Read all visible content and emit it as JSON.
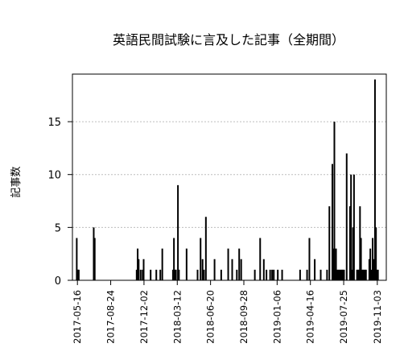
{
  "chart_data": {
    "type": "bar",
    "title": "英語民間試験に言及した記事（全期間）",
    "xlabel": "",
    "ylabel": "記事数",
    "x_start": "2017-05-01",
    "x_end": "2019-11-30",
    "ylim": [
      0,
      19.5
    ],
    "yticks": [
      0,
      5,
      10,
      15
    ],
    "grid": "horizontal-dotted",
    "xticks": [
      "2017-05-16",
      "2017-08-24",
      "2017-12-02",
      "2018-03-12",
      "2018-06-20",
      "2018-09-28",
      "2019-01-06",
      "2019-04-16",
      "2019-07-25",
      "2019-11-03"
    ],
    "x": [
      "2017-05-14",
      "2017-05-16",
      "2017-05-18",
      "2017-05-20",
      "2017-07-04",
      "2017-07-07",
      "2017-11-10",
      "2017-11-13",
      "2017-11-16",
      "2017-11-22",
      "2017-11-28",
      "2017-12-01",
      "2017-12-22",
      "2018-01-08",
      "2018-01-20",
      "2018-01-26",
      "2018-02-27",
      "2018-03-02",
      "2018-03-05",
      "2018-03-08",
      "2018-03-14",
      "2018-03-17",
      "2018-04-09",
      "2018-05-12",
      "2018-05-21",
      "2018-05-27",
      "2018-05-31",
      "2018-06-06",
      "2018-07-02",
      "2018-07-22",
      "2018-08-12",
      "2018-08-24",
      "2018-09-07",
      "2018-09-14",
      "2018-09-20",
      "2018-10-31",
      "2018-11-16",
      "2018-11-27",
      "2018-12-05",
      "2018-12-16",
      "2018-12-22",
      "2018-12-27",
      "2019-01-08",
      "2019-01-21",
      "2019-03-16",
      "2019-04-06",
      "2019-04-13",
      "2019-04-29",
      "2019-05-17",
      "2019-06-05",
      "2019-06-12",
      "2019-06-21",
      "2019-06-23",
      "2019-06-25",
      "2019-06-27",
      "2019-06-29",
      "2019-07-02",
      "2019-07-05",
      "2019-07-08",
      "2019-07-11",
      "2019-07-14",
      "2019-07-17",
      "2019-07-20",
      "2019-07-23",
      "2019-07-26",
      "2019-08-03",
      "2019-08-13",
      "2019-08-16",
      "2019-08-19",
      "2019-08-22",
      "2019-08-25",
      "2019-09-03",
      "2019-09-06",
      "2019-09-09",
      "2019-09-12",
      "2019-09-15",
      "2019-09-18",
      "2019-09-21",
      "2019-09-24",
      "2019-09-27",
      "2019-09-30",
      "2019-10-10",
      "2019-10-13",
      "2019-10-17",
      "2019-10-20",
      "2019-10-24",
      "2019-10-27",
      "2019-10-30",
      "2019-11-02",
      "2019-11-05"
    ],
    "values": [
      4,
      1,
      1,
      1,
      5,
      4,
      1,
      3,
      2,
      1,
      1,
      2,
      1,
      1,
      1,
      3,
      1,
      4,
      1,
      1,
      9,
      1,
      3,
      1,
      4,
      2,
      1,
      6,
      2,
      1,
      3,
      2,
      1,
      3,
      2,
      1,
      4,
      2,
      1,
      1,
      1,
      1,
      1,
      1,
      1,
      1,
      4,
      2,
      1,
      1,
      7,
      11,
      2,
      3,
      15,
      1,
      3,
      1,
      1,
      1,
      1,
      1,
      1,
      1,
      1,
      12,
      7,
      10,
      1,
      5,
      10,
      1,
      1,
      1,
      7,
      4,
      1,
      1,
      1,
      1,
      1,
      2,
      3,
      1,
      4,
      2,
      19,
      5,
      1,
      1
    ]
  }
}
